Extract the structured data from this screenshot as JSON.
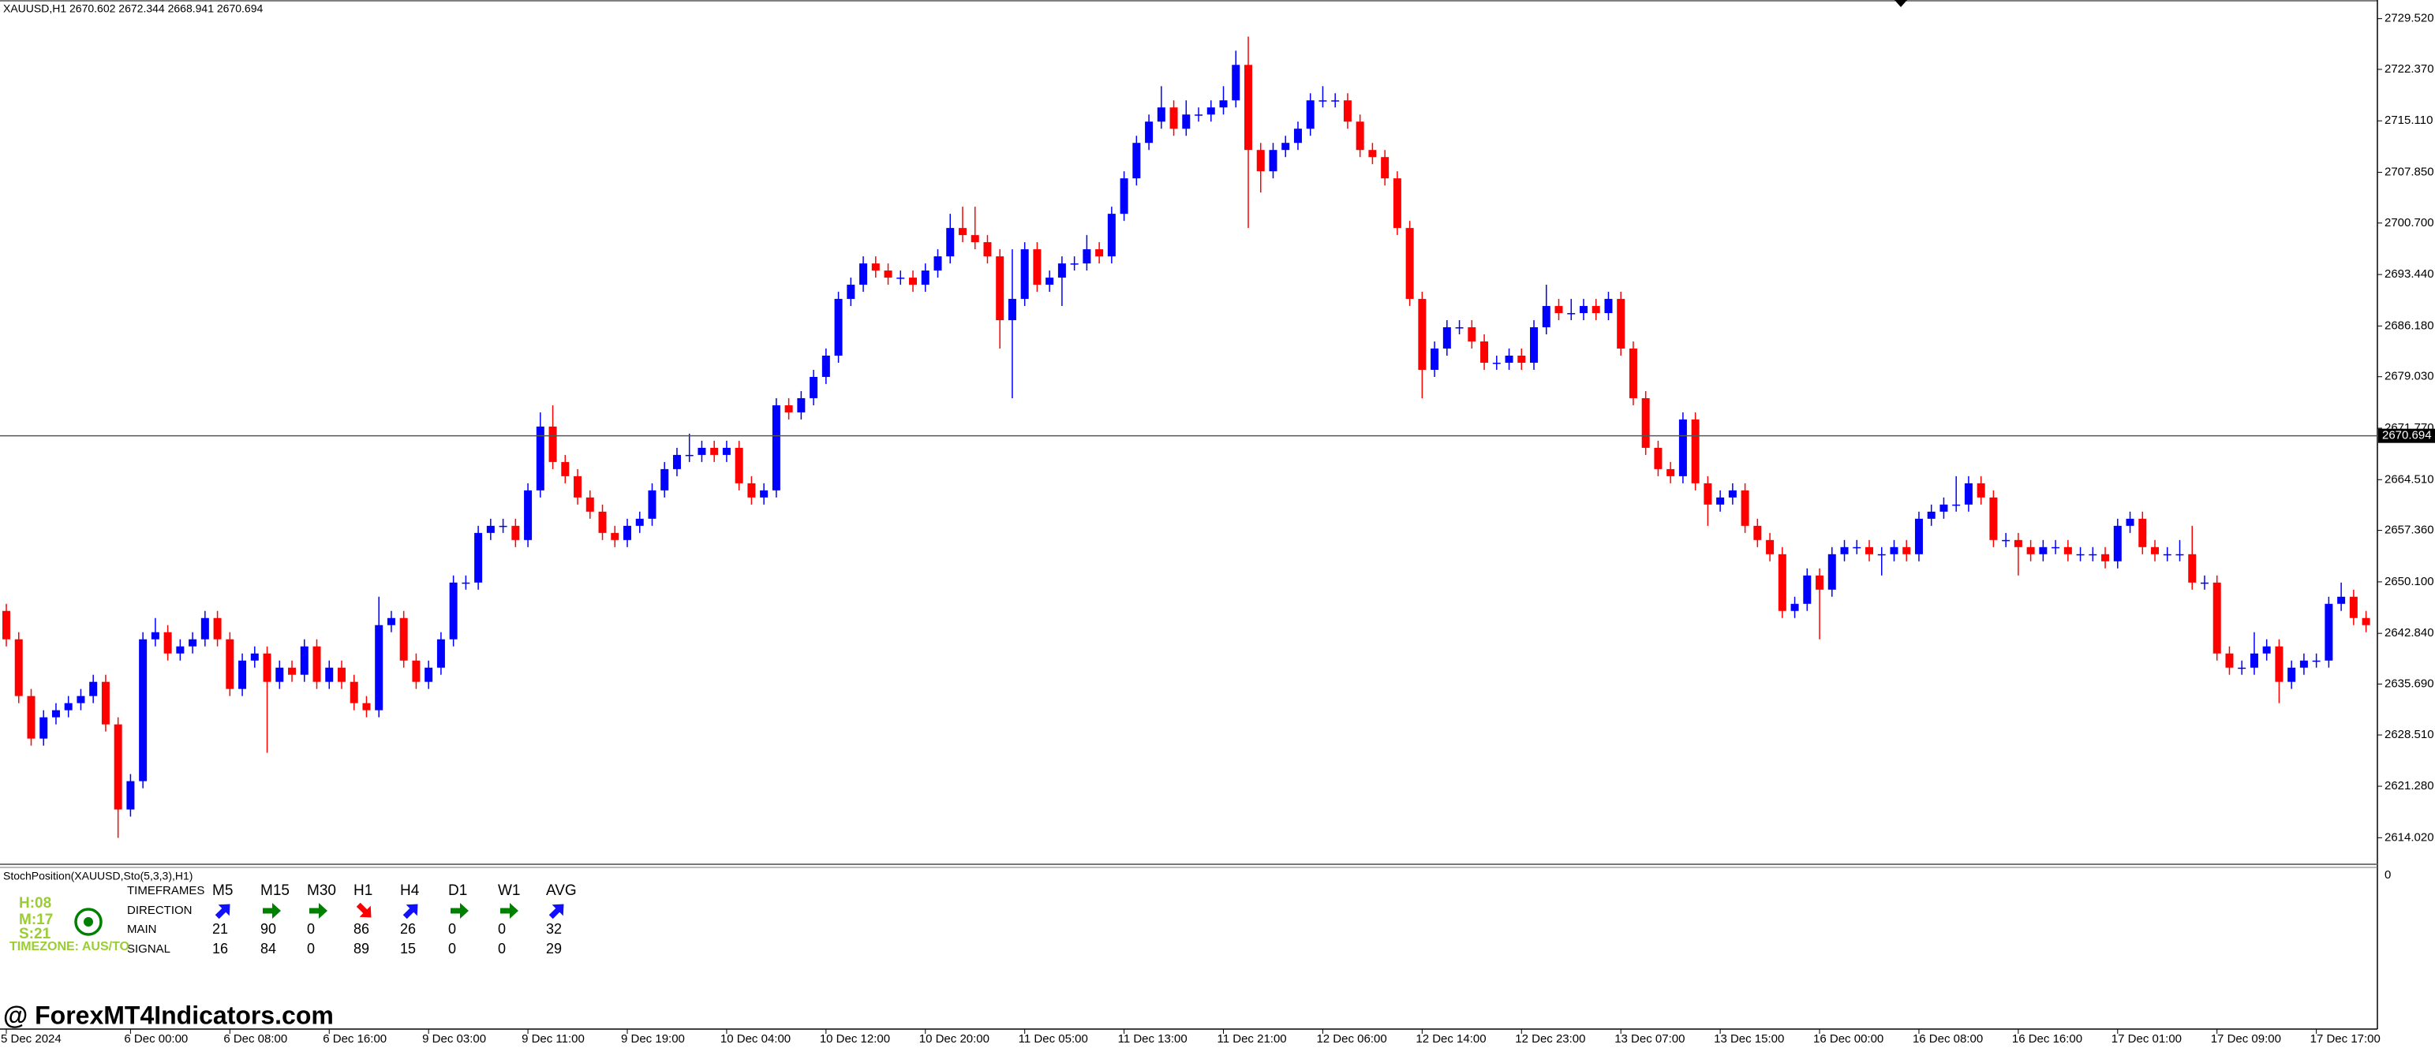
{
  "chart_data": {
    "type": "candlestick",
    "title": "XAUUSD,H1  2670.602 2672.344 2668.941 2670.694",
    "categories": [
      "5 Dec 2024",
      null,
      null,
      null,
      null,
      null,
      null,
      null,
      null,
      null,
      "6 Dec 00:00",
      null,
      null,
      null,
      null,
      null,
      null,
      null,
      "6 Dec 08:00",
      null,
      null,
      null,
      null,
      null,
      null,
      null,
      "6 Dec 16:00",
      null,
      null,
      null,
      null,
      null,
      null,
      null,
      "9 Dec 03:00",
      null,
      null,
      null,
      null,
      null,
      null,
      null,
      "9 Dec 11:00",
      null,
      null,
      null,
      null,
      null,
      null,
      null,
      "9 Dec 19:00",
      null,
      null,
      null,
      null,
      null,
      null,
      null,
      "10 Dec 04:00",
      null,
      null,
      null,
      null,
      null,
      null,
      null,
      "10 Dec 12:00",
      null,
      null,
      null,
      null,
      null,
      null,
      null,
      "10 Dec 20:00",
      null,
      null,
      null,
      null,
      null,
      null,
      null,
      "11 Dec 05:00",
      null,
      null,
      null,
      null,
      null,
      null,
      null,
      "11 Dec 13:00",
      null,
      null,
      null,
      null,
      null,
      null,
      null,
      "11 Dec 21:00",
      null,
      null,
      null,
      null,
      null,
      null,
      null,
      "12 Dec 06:00",
      null,
      null,
      null,
      null,
      null,
      null,
      null,
      "12 Dec 14:00",
      null,
      null,
      null,
      null,
      null,
      null,
      null,
      "12 Dec 23:00",
      null,
      null,
      null,
      null,
      null,
      null,
      null,
      "13 Dec 07:00",
      null,
      null,
      null,
      null,
      null,
      null,
      null,
      "13 Dec 15:00",
      null,
      null,
      null,
      null,
      null,
      null,
      null,
      "16 Dec 00:00",
      null,
      null,
      null,
      null,
      null,
      null,
      null,
      "16 Dec 08:00",
      null,
      null,
      null,
      null,
      null,
      null,
      null,
      "16 Dec 16:00",
      null,
      null,
      null,
      null,
      null,
      null,
      null,
      "17 Dec 01:00",
      null,
      null,
      null,
      null,
      null,
      null,
      null,
      "17 Dec 09:00",
      null,
      null,
      null,
      null,
      null,
      null,
      null,
      "17 Dec 17:00",
      null,
      null,
      null,
      null
    ],
    "open": [
      2646,
      2642,
      2634,
      2628,
      2631,
      2632,
      2633,
      2634,
      2636,
      2630,
      2618,
      2622,
      2642,
      2643,
      2640,
      2641,
      2642,
      2645,
      2642,
      2635,
      2639,
      2640,
      2636,
      2638,
      2637,
      2641,
      2636,
      2638,
      2636,
      2633,
      2632,
      2644,
      2645,
      2639,
      2636,
      2638,
      2642,
      2650,
      2650,
      2657,
      2658,
      2658,
      2656,
      2663,
      2672,
      2667,
      2665,
      2662,
      2660,
      2657,
      2656,
      2658,
      2659,
      2663,
      2666,
      2668,
      2668,
      2669,
      2668,
      2669,
      2664,
      2662,
      2663,
      2675,
      2674,
      2676,
      2679,
      2682,
      2690,
      2692,
      2695,
      2694,
      2693,
      2693,
      2692,
      2694,
      2696,
      2700,
      2699,
      2698,
      2696,
      2687,
      2690,
      2697,
      2692,
      2693,
      2695,
      2695,
      2697,
      2696,
      2702,
      2707,
      2712,
      2715,
      2717,
      2714,
      2716,
      2716,
      2717,
      2718,
      2723,
      2711,
      2708,
      2711,
      2712,
      2714,
      2718,
      2718,
      2718,
      2715,
      2711,
      2710,
      2707,
      2700,
      2690,
      2680,
      2683,
      2686,
      2686,
      2684,
      2681,
      2681,
      2682,
      2681,
      2686,
      2689,
      2688,
      2688,
      2689,
      2688,
      2690,
      2683,
      2676,
      2669,
      2666,
      2665,
      2673,
      2664,
      2661,
      2662,
      2663,
      2658,
      2656,
      2654,
      2646,
      2647,
      2651,
      2649,
      2654,
      2655,
      2655,
      2654,
      2654,
      2655,
      2654,
      2659,
      2660,
      2661,
      2661,
      2664,
      2662,
      2656,
      2656,
      2655,
      2654,
      2655,
      2655,
      2654,
      2654,
      2654,
      2653,
      2658,
      2659,
      2655,
      2654,
      2654,
      2654,
      2650,
      2650,
      2640,
      2638,
      2638,
      2640,
      2641,
      2636,
      2638,
      2639,
      2639,
      2647,
      2648,
      2645
    ],
    "high": [
      2647,
      2643,
      2635,
      2632,
      2633,
      2634,
      2635,
      2637,
      2637,
      2631,
      2623,
      2643,
      2645,
      2644,
      2642,
      2643,
      2646,
      2646,
      2643,
      2640,
      2641,
      2641,
      2639,
      2639,
      2642,
      2642,
      2639,
      2639,
      2637,
      2634,
      2648,
      2646,
      2646,
      2640,
      2639,
      2643,
      2651,
      2651,
      2658,
      2659,
      2659,
      2659,
      2664,
      2674,
      2675,
      2668,
      2666,
      2663,
      2661,
      2658,
      2659,
      2660,
      2664,
      2667,
      2669,
      2671,
      2670,
      2670,
      2670,
      2670,
      2665,
      2664,
      2676,
      2676,
      2677,
      2680,
      2683,
      2691,
      2693,
      2696,
      2696,
      2695,
      2694,
      2694,
      2695,
      2697,
      2702,
      2703,
      2703,
      2699,
      2697,
      2697,
      2698,
      2698,
      2694,
      2696,
      2696,
      2699,
      2698,
      2703,
      2708,
      2713,
      2716,
      2720,
      2718,
      2718,
      2717,
      2718,
      2720,
      2725,
      2727,
      2712,
      2712,
      2713,
      2715,
      2719,
      2720,
      2719,
      2719,
      2716,
      2712,
      2711,
      2708,
      2701,
      2691,
      2684,
      2687,
      2687,
      2687,
      2685,
      2682,
      2683,
      2683,
      2687,
      2692,
      2690,
      2690,
      2690,
      2690,
      2691,
      2691,
      2684,
      2677,
      2670,
      2667,
      2674,
      2674,
      2665,
      2663,
      2664,
      2664,
      2659,
      2657,
      2655,
      2648,
      2652,
      2652,
      2655,
      2656,
      2656,
      2656,
      2655,
      2656,
      2656,
      2660,
      2661,
      2662,
      2665,
      2665,
      2665,
      2663,
      2657,
      2657,
      2656,
      2656,
      2656,
      2656,
      2655,
      2655,
      2655,
      2659,
      2660,
      2660,
      2656,
      2655,
      2656,
      2658,
      2651,
      2651,
      2641,
      2639,
      2643,
      2642,
      2642,
      2639,
      2640,
      2640,
      2648,
      2650,
      2649,
      2646
    ],
    "low": [
      2641,
      2633,
      2627,
      2627,
      2630,
      2631,
      2632,
      2633,
      2629,
      2614,
      2617,
      2621,
      2641,
      2639,
      2639,
      2640,
      2641,
      2641,
      2634,
      2634,
      2638,
      2626,
      2635,
      2636,
      2636,
      2635,
      2635,
      2635,
      2632,
      2631,
      2631,
      2643,
      2638,
      2635,
      2635,
      2637,
      2641,
      2649,
      2649,
      2656,
      2657,
      2655,
      2655,
      2662,
      2666,
      2664,
      2661,
      2659,
      2656,
      2655,
      2655,
      2657,
      2658,
      2662,
      2665,
      2667,
      2667,
      2667,
      2667,
      2663,
      2661,
      2661,
      2662,
      2673,
      2673,
      2675,
      2678,
      2681,
      2689,
      2691,
      2693,
      2692,
      2692,
      2691,
      2691,
      2693,
      2695,
      2698,
      2697,
      2695,
      2683,
      2676,
      2689,
      2691,
      2691,
      2689,
      2694,
      2694,
      2695,
      2695,
      2701,
      2706,
      2711,
      2714,
      2713,
      2713,
      2715,
      2715,
      2716,
      2717,
      2700,
      2705,
      2707,
      2710,
      2711,
      2713,
      2717,
      2717,
      2714,
      2710,
      2709,
      2706,
      2699,
      2689,
      2676,
      2679,
      2682,
      2685,
      2683,
      2680,
      2680,
      2680,
      2680,
      2680,
      2685,
      2687,
      2687,
      2687,
      2687,
      2687,
      2682,
      2675,
      2668,
      2665,
      2664,
      2664,
      2663,
      2658,
      2660,
      2661,
      2657,
      2655,
      2653,
      2645,
      2645,
      2646,
      2642,
      2648,
      2653,
      2654,
      2653,
      2651,
      2653,
      2653,
      2653,
      2658,
      2659,
      2660,
      2660,
      2661,
      2655,
      2655,
      2651,
      2653,
      2653,
      2654,
      2653,
      2653,
      2653,
      2652,
      2652,
      2657,
      2654,
      2653,
      2653,
      2653,
      2649,
      2649,
      2639,
      2637,
      2637,
      2637,
      2639,
      2633,
      2635,
      2637,
      2638,
      2638,
      2646,
      2644,
      2643
    ],
    "close": [
      2642,
      2634,
      2628,
      2631,
      2632,
      2633,
      2634,
      2636,
      2630,
      2618,
      2622,
      2642,
      2643,
      2640,
      2641,
      2642,
      2645,
      2642,
      2635,
      2639,
      2640,
      2636,
      2638,
      2637,
      2641,
      2636,
      2638,
      2636,
      2633,
      2632,
      2644,
      2645,
      2639,
      2636,
      2638,
      2642,
      2650,
      2650,
      2657,
      2658,
      2658,
      2656,
      2663,
      2672,
      2667,
      2665,
      2662,
      2660,
      2657,
      2656,
      2658,
      2659,
      2663,
      2666,
      2668,
      2668,
      2669,
      2668,
      2669,
      2664,
      2662,
      2663,
      2675,
      2674,
      2676,
      2679,
      2682,
      2690,
      2692,
      2695,
      2694,
      2693,
      2693,
      2692,
      2694,
      2696,
      2700,
      2699,
      2698,
      2696,
      2687,
      2690,
      2697,
      2692,
      2693,
      2695,
      2695,
      2697,
      2696,
      2702,
      2707,
      2712,
      2715,
      2717,
      2714,
      2716,
      2716,
      2717,
      2718,
      2723,
      2711,
      2708,
      2711,
      2712,
      2714,
      2718,
      2718,
      2718,
      2715,
      2711,
      2710,
      2707,
      2700,
      2690,
      2680,
      2683,
      2686,
      2686,
      2684,
      2681,
      2681,
      2682,
      2681,
      2686,
      2689,
      2688,
      2688,
      2689,
      2688,
      2690,
      2683,
      2676,
      2669,
      2666,
      2665,
      2673,
      2664,
      2661,
      2662,
      2663,
      2658,
      2656,
      2654,
      2646,
      2647,
      2651,
      2649,
      2654,
      2655,
      2655,
      2654,
      2654,
      2655,
      2654,
      2659,
      2660,
      2661,
      2661,
      2664,
      2662,
      2656,
      2656,
      2655,
      2654,
      2655,
      2655,
      2654,
      2654,
      2654,
      2653,
      2658,
      2659,
      2655,
      2654,
      2654,
      2654,
      2650,
      2650,
      2640,
      2638,
      2638,
      2640,
      2641,
      2636,
      2638,
      2639,
      2639,
      2647,
      2648,
      2645,
      2644
    ],
    "up_color": "#0000ff",
    "down_color": "#ff0000",
    "ylim": [
      2610.5,
      2732.15
    ],
    "yticks": [
      {
        "value": 2729.52,
        "label": "2729.520"
      },
      {
        "value": 2722.37,
        "label": "2722.370"
      },
      {
        "value": 2715.11,
        "label": "2715.110"
      },
      {
        "value": 2707.85,
        "label": "2707.850"
      },
      {
        "value": 2700.7,
        "label": "2700.700"
      },
      {
        "value": 2693.44,
        "label": "2693.440"
      },
      {
        "value": 2686.18,
        "label": "2686.180"
      },
      {
        "value": 2679.03,
        "label": "2679.030"
      },
      {
        "value": 2671.77,
        "label": "2671.770"
      },
      {
        "value": 2664.51,
        "label": "2664.510"
      },
      {
        "value": 2657.36,
        "label": "2657.360"
      },
      {
        "value": 2650.1,
        "label": "2650.100"
      },
      {
        "value": 2642.84,
        "label": "2642.840"
      },
      {
        "value": 2635.69,
        "label": "2635.690"
      },
      {
        "value": 2628.51,
        "label": "2628.510"
      },
      {
        "value": 2621.28,
        "label": "2621.280"
      },
      {
        "value": 2614.02,
        "label": "2614.020"
      }
    ],
    "current_price": 2670.694
  },
  "indicator": {
    "title": "StochPosition(XAUUSD,Sto(5,3,3),H1)",
    "axis_ticks": [
      0
    ],
    "row_labels": [
      "TIMEFRAMES",
      "DIRECTION",
      "MAIN",
      "SIGNAL"
    ],
    "timeframes": [
      "M5",
      "M15",
      "M30",
      "H1",
      "H4",
      "D1",
      "W1",
      "AVG"
    ],
    "direction": [
      "up",
      "flat",
      "flat",
      "down",
      "up",
      "flat",
      "flat",
      "up"
    ],
    "direction_colors": {
      "up": "#1010ff",
      "flat": "#008000",
      "down": "#ff0000"
    },
    "main": [
      21,
      90,
      0,
      86,
      26,
      0,
      0,
      32
    ],
    "signal": [
      16,
      84,
      0,
      89,
      15,
      0,
      0,
      29
    ],
    "clock": [
      "H:08",
      "M:17",
      "S:21"
    ],
    "timezone": "TIMEZONE: AUS/TO"
  },
  "watermark": "@ ForexMT4Indicators.com"
}
